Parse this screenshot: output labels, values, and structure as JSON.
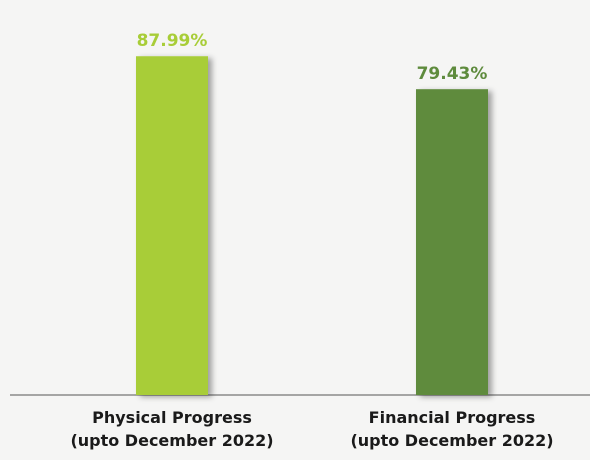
{
  "chart_data": {
    "type": "bar",
    "categories": [
      "Physical Progress\n(upto December 2022)",
      "Financial Progress\n(upto December 2022)"
    ],
    "values": [
      87.99,
      79.43
    ],
    "value_labels": [
      "87.99%",
      "79.43%"
    ],
    "colors": [
      "#a8cd38",
      "#5e8b3d"
    ],
    "ylim": [
      0,
      100
    ]
  }
}
